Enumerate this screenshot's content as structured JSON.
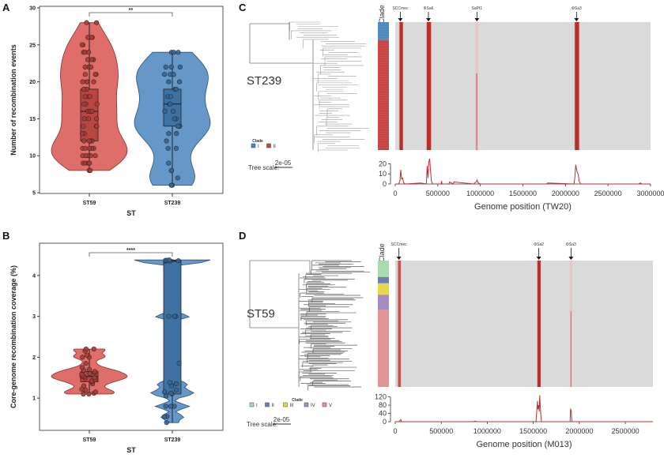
{
  "chart_data": [
    {
      "id": "A",
      "type": "violin",
      "panel_label": "A",
      "title": "",
      "xlabel": "ST",
      "ylabel": "Number of recombination events",
      "categories": [
        "ST59",
        "ST239"
      ],
      "ylim": [
        5,
        30
      ],
      "yticks": [
        5,
        10,
        15,
        20,
        25,
        30
      ],
      "significance": "**",
      "series": [
        {
          "name": "ST59",
          "color": "#d9534f",
          "box": {
            "min": 8,
            "q1": 12,
            "median": 16,
            "q3": 19,
            "max": 28
          },
          "points": [
            8,
            8,
            9,
            9,
            9,
            9,
            10,
            10,
            10,
            10,
            10,
            11,
            11,
            11,
            11,
            11,
            12,
            12,
            12,
            12,
            13,
            13,
            14,
            14,
            14,
            15,
            15,
            15,
            16,
            16,
            16,
            17,
            17,
            17,
            18,
            18,
            18,
            19,
            19,
            20,
            20,
            20,
            20,
            21,
            21,
            21,
            22,
            22,
            22,
            23,
            23,
            23,
            24,
            24,
            24,
            25,
            25,
            26,
            26,
            26,
            28,
            28
          ]
        },
        {
          "name": "ST239",
          "color": "#4a86c0",
          "box": {
            "min": 6,
            "q1": 14,
            "median": 17,
            "q3": 19,
            "max": 24
          },
          "points": [
            6,
            6,
            6,
            7,
            8,
            8,
            9,
            11,
            11,
            12,
            13,
            13,
            14,
            14,
            14,
            14,
            15,
            15,
            16,
            16,
            17,
            17,
            18,
            18,
            19,
            19,
            20,
            20,
            21,
            21,
            21,
            22,
            22,
            22,
            24,
            24,
            24
          ]
        }
      ]
    },
    {
      "id": "B",
      "type": "violin",
      "panel_label": "B",
      "title": "",
      "xlabel": "ST",
      "ylabel": "Core-genome recombination coverage (%)",
      "categories": [
        "ST59",
        "ST239"
      ],
      "ylim": [
        0.3,
        4.6
      ],
      "yticks": [
        1,
        2,
        3,
        4
      ],
      "significance": "****",
      "series": [
        {
          "name": "ST59",
          "color": "#d9534f",
          "box": {
            "min": 1.1,
            "q1": 1.4,
            "median": 1.53,
            "q3": 1.65,
            "max": 2.2
          },
          "points": [
            1.1,
            1.1,
            1.12,
            1.15,
            1.2,
            1.22,
            1.3,
            1.35,
            1.4,
            1.42,
            1.45,
            1.48,
            1.5,
            1.52,
            1.53,
            1.55,
            1.58,
            1.6,
            1.62,
            1.65,
            1.68,
            1.7,
            1.75,
            1.85,
            2.0,
            2.0,
            2.05,
            2.15,
            2.2,
            2.2
          ]
        },
        {
          "name": "ST239",
          "color": "#4a86c0",
          "box": {
            "min": 0.4,
            "q1": 1.1,
            "median": 4.35,
            "q3": 4.37,
            "max": 4.4
          },
          "points": [
            0.4,
            0.55,
            0.55,
            0.8,
            0.8,
            0.8,
            1.05,
            1.1,
            1.12,
            1.15,
            1.2,
            1.3,
            1.35,
            1.38,
            1.85,
            3.0,
            3.0,
            3.0,
            4.35,
            4.35,
            4.36,
            4.36,
            4.37,
            4.37,
            4.38
          ]
        }
      ]
    },
    {
      "id": "C",
      "type": "heatmap",
      "panel_label": "C",
      "tree_label": "ST239",
      "clade_header": "Clade",
      "legend_title": "Clade",
      "legend": [
        {
          "label": "I",
          "color": "#4a86c0"
        },
        {
          "label": "II",
          "color": "#c9403f"
        }
      ],
      "clade_fractions": [
        0.14,
        0.86
      ],
      "tree_scale_label": "Tree scale:",
      "tree_scale_value": "2e-05",
      "annotations": [
        {
          "label": "SCCmec",
          "position": 60000
        },
        {
          "label": "ΦSa6",
          "position": 390000
        },
        {
          "label": "SaPI1",
          "position": 960000
        },
        {
          "label": "ΦSa3",
          "position": 2130000
        }
      ],
      "recombination_bands": [
        {
          "start": 50000,
          "end": 90000,
          "intensity": "high"
        },
        {
          "start": 370000,
          "end": 420000,
          "intensity": "high"
        },
        {
          "start": 950000,
          "end": 965000,
          "intensity": "low"
        },
        {
          "start": 2110000,
          "end": 2160000,
          "intensity": "high"
        }
      ],
      "xlabel": "Genome position (TW20)",
      "xlim": [
        0,
        3000000
      ],
      "xticks": [
        0,
        500000,
        1000000,
        1500000,
        2000000,
        2500000,
        3000000
      ],
      "ylim": [
        0,
        25
      ],
      "yticks": [
        0,
        10,
        20
      ],
      "line": {
        "x": [
          0,
          40000,
          55000,
          65000,
          75000,
          85000,
          100000,
          120000,
          300000,
          365000,
          375000,
          385000,
          395000,
          405000,
          415000,
          425000,
          440000,
          540000,
          545000,
          550000,
          630000,
          640000,
          680000,
          690000,
          920000,
          950000,
          960000,
          975000,
          1000000,
          1780000,
          1790000,
          2100000,
          2110000,
          2120000,
          2130000,
          2140000,
          2150000,
          2160000,
          2180000,
          2860000,
          2880000,
          2900000,
          3000000
        ],
        "y": [
          0,
          0,
          3,
          14,
          5,
          6,
          1,
          0,
          1,
          0,
          18,
          6,
          22,
          25,
          12,
          3,
          0,
          0,
          3,
          0,
          0,
          2,
          0,
          2,
          0,
          2,
          4,
          1,
          0,
          0,
          1,
          0,
          6,
          19,
          15,
          11,
          10,
          3,
          0,
          0,
          1,
          0,
          0
        ]
      }
    },
    {
      "id": "D",
      "type": "heatmap",
      "panel_label": "D",
      "tree_label": "ST59",
      "clade_header": "Clade",
      "legend_title": "Clade",
      "legend": [
        {
          "label": "I",
          "color": "#a8dbb0"
        },
        {
          "label": "II",
          "color": "#6c7db5"
        },
        {
          "label": "III",
          "color": "#e8d84c"
        },
        {
          "label": "IV",
          "color": "#a58cc4"
        },
        {
          "label": "V",
          "color": "#e29393"
        }
      ],
      "clade_fractions": [
        0.13,
        0.05,
        0.09,
        0.12,
        0.61
      ],
      "tree_scale_label": "Tree scale:",
      "tree_scale_value": "2e-05",
      "annotations": [
        {
          "label": "SCCmec",
          "position": 40000
        },
        {
          "label": "ΦSa2",
          "position": 1560000
        },
        {
          "label": "ΦSa3",
          "position": 1910000
        }
      ],
      "recombination_bands": [
        {
          "start": 30000,
          "end": 60000,
          "intensity": "medium"
        },
        {
          "start": 1545000,
          "end": 1580000,
          "intensity": "high"
        },
        {
          "start": 1905000,
          "end": 1915000,
          "intensity": "low"
        }
      ],
      "xlabel": "Genome position (M013)",
      "xlim": [
        0,
        2800000
      ],
      "xticks": [
        0,
        500000,
        1000000,
        1500000,
        2000000,
        2500000
      ],
      "ylim": [
        0,
        130
      ],
      "yticks": [
        0,
        40,
        80,
        120
      ],
      "line": {
        "x": [
          0,
          40000,
          50000,
          60000,
          70000,
          850000,
          870000,
          880000,
          1530000,
          1545000,
          1550000,
          1560000,
          1565000,
          1570000,
          1580000,
          1590000,
          1900000,
          1905000,
          1912000,
          1920000,
          2800000
        ],
        "y": [
          0,
          0,
          5,
          10,
          0,
          0,
          3,
          0,
          0,
          100,
          60,
          80,
          50,
          128,
          40,
          0,
          0,
          60,
          55,
          0,
          0
        ]
      }
    }
  ]
}
